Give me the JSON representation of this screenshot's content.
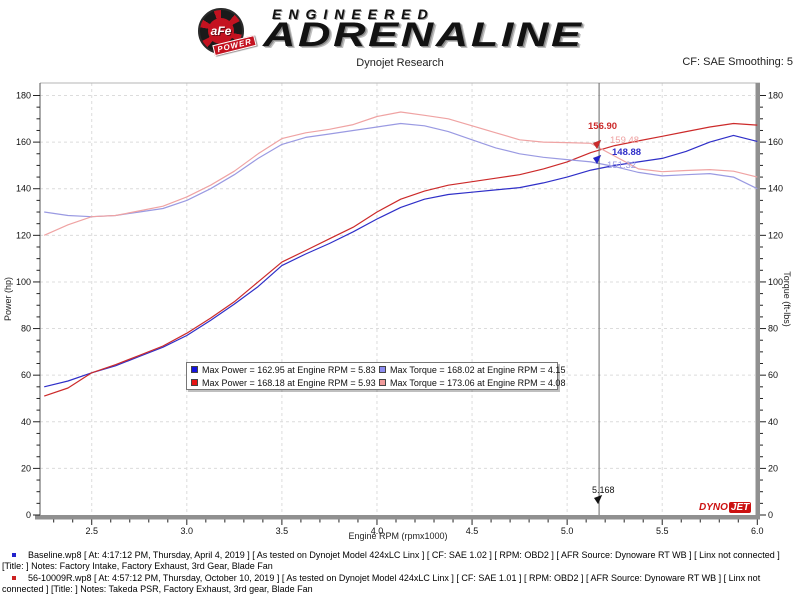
{
  "header": {
    "logo_text": "aFe",
    "logo_sub": "POWER",
    "brand_small": "ENGINEERED",
    "brand_large": "ADRENALINE",
    "title": "Dynojet Research",
    "smoothing": "CF: SAE Smoothing: 5"
  },
  "chart_data": {
    "type": "line",
    "title": "Dynojet Research",
    "xlabel": "Engine RPM (rpmx1000)",
    "ylabel_left": "Power (hp)",
    "ylabel_right": "Torque (ft-lbs)",
    "x_range_visible": [
      2.23,
      6.0
    ],
    "x_ticks": [
      2.5,
      3.0,
      3.5,
      4.0,
      4.5,
      5.0,
      5.5,
      6.0
    ],
    "x_minor_step": 0.1,
    "y_range": [
      0,
      180
    ],
    "y_tick_step": 20,
    "y_minor_step": 5,
    "grid": "dashed",
    "legend_position": "center-bottom",
    "rpm": [
      2.25,
      2.375,
      2.5,
      2.625,
      2.75,
      2.875,
      3.0,
      3.125,
      3.25,
      3.375,
      3.5,
      3.625,
      3.75,
      3.875,
      4.0,
      4.125,
      4.25,
      4.375,
      4.5,
      4.625,
      4.75,
      4.875,
      5.0,
      5.125,
      5.25,
      5.375,
      5.5,
      5.625,
      5.75,
      5.875,
      6.0
    ],
    "series": [
      {
        "name": "Baseline Power (hp)",
        "color": "#2f2fc8",
        "axis": "left",
        "values": [
          55,
          57.5,
          61,
          64,
          68,
          72,
          77,
          83.5,
          90.5,
          98,
          107,
          112,
          116.5,
          121.5,
          127,
          132,
          135.5,
          137.5,
          138.5,
          139.5,
          140.5,
          142.5,
          145,
          148,
          150,
          151.5,
          153,
          156,
          160,
          162.9,
          160.3
        ]
      },
      {
        "name": "Takeda Power (hp)",
        "color": "#cc2a2a",
        "axis": "left",
        "values": [
          51,
          54.5,
          61,
          64.5,
          68.5,
          72.5,
          78,
          84.5,
          91.5,
          100,
          108.5,
          113.5,
          118.5,
          123.5,
          130,
          135.5,
          139,
          141.5,
          143,
          144.5,
          146,
          148.5,
          151.5,
          155.5,
          158.5,
          160.5,
          162.5,
          164.5,
          166.5,
          168,
          167.3
        ]
      },
      {
        "name": "Baseline Torque (ft-lbs)",
        "color": "#9a9ae2",
        "axis": "right",
        "values": [
          130,
          128.5,
          128,
          128.5,
          130,
          131.5,
          135,
          140,
          146,
          153,
          159,
          162,
          163.5,
          165,
          166.5,
          168,
          167,
          164.5,
          161,
          157.5,
          155,
          153.5,
          152.5,
          151.5,
          149.5,
          147,
          145.5,
          146,
          146.5,
          145,
          140
        ]
      },
      {
        "name": "Takeda Torque (ft-lbs)",
        "color": "#efa3a3",
        "axis": "right",
        "values": [
          120,
          124.5,
          128,
          128.5,
          130.5,
          132.5,
          136.5,
          141.5,
          147.5,
          155,
          161.5,
          164,
          165.5,
          167.5,
          171,
          172.9,
          171.5,
          170,
          167,
          164,
          161,
          160,
          159.8,
          159.5,
          154,
          148.5,
          147.3,
          147.8,
          148.2,
          147.5,
          145
        ]
      }
    ],
    "cursor": {
      "rpm": 5.168,
      "label": "5.168",
      "readings": [
        {
          "value": "156.90",
          "color": "#cc2a2a"
        },
        {
          "value": "159.48",
          "color": "#efa3a3"
        },
        {
          "value": "148.88",
          "color": "#2f2fc8"
        },
        {
          "value": "151.32",
          "color": "#9a9ae2"
        }
      ]
    }
  },
  "legend": {
    "items": [
      {
        "swatch": "#1414e0",
        "text": "Max Power = 162.95 at Engine RPM = 5.83"
      },
      {
        "swatch": "#8c8cf0",
        "text": "Max Torque = 168.02 at Engine RPM = 4.15"
      },
      {
        "swatch": "#e61414",
        "text": "Max Power = 168.18 at Engine RPM = 5.93"
      },
      {
        "swatch": "#f09a9a",
        "text": "Max Torque = 173.06 at Engine RPM = 4.08"
      }
    ]
  },
  "watermark": {
    "dyno": "DYNO",
    "jet": "JET"
  },
  "footer": {
    "runs": [
      {
        "bullet": "#2222cc",
        "text": "Baseline.wp8 [ At: 4:17:12 PM, Thursday, April 4, 2019 ] [ As tested on Dynojet Model 424xLC Linx ] [ CF: SAE 1.02 ] [ RPM: OBD2 ] [ AFR Source: Dynoware RT WB ] [ Linx not connected ] [Title: ]  Notes: Factory Intake, Factory Exhaust, 3rd Gear, Blade Fan"
      },
      {
        "bullet": "#cc2222",
        "text": "56-10009R.wp8 [ At: 4:57:12 PM, Thursday, October 10, 2019 ] [ As tested on Dynojet Model 424xLC Linx ] [ CF: SAE 1.01 ] [ RPM: OBD2 ] [ AFR Source: Dynoware RT WB ] [ Linx not connected ] [Title: ]  Notes: Takeda PSR, Factory Exhaust, 3rd gear, Blade Fan"
      }
    ]
  }
}
